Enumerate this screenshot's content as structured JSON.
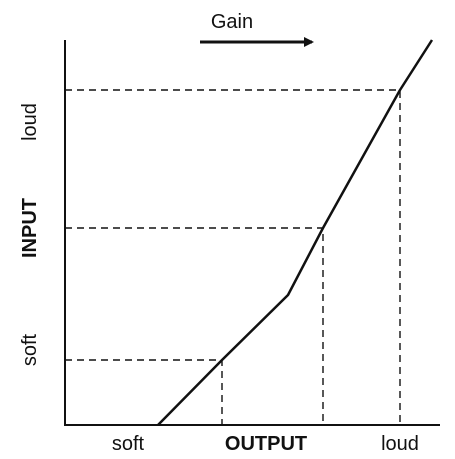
{
  "header": {
    "gain": "Gain"
  },
  "y_axis": {
    "label": "INPUT",
    "high": "loud",
    "low": "soft"
  },
  "x_axis": {
    "label": "OUTPUT",
    "low": "soft",
    "high": "loud"
  }
}
